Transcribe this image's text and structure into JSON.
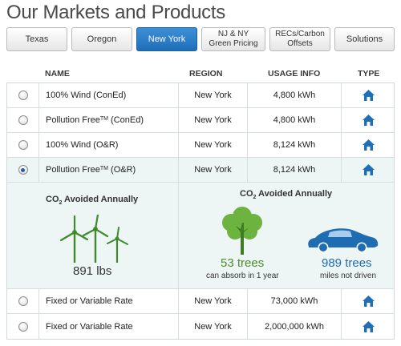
{
  "page_title": "Our Markets and Products",
  "tabs": [
    {
      "label": "Texas",
      "active": false
    },
    {
      "label": "Oregon",
      "active": false
    },
    {
      "label": "New York",
      "active": true
    },
    {
      "label": "NJ & NY Green Pricing",
      "active": false
    },
    {
      "label": "RECs/Carbon Offsets",
      "active": false
    },
    {
      "label": "Solutions",
      "active": false
    }
  ],
  "columns": {
    "name": "NAME",
    "region": "REGION",
    "usage": "USAGE INFO",
    "type": "TYPE"
  },
  "rows": [
    {
      "name": "100% Wind (ConEd)",
      "tm": "",
      "suffix": "",
      "region": "New York",
      "usage": "4,800 kWh",
      "selected": false,
      "type_icon": "house-icon"
    },
    {
      "name": "Pollution Free",
      "tm": "TM",
      "suffix": " (ConEd)",
      "region": "New York",
      "usage": "4,800 kWh",
      "selected": false,
      "type_icon": "house-icon"
    },
    {
      "name": "100% Wind (O&R)",
      "tm": "",
      "suffix": "",
      "region": "New York",
      "usage": "8,124 kWh",
      "selected": false,
      "type_icon": "house-icon"
    },
    {
      "name": "Pollution Free",
      "tm": "TM",
      "suffix": " (O&R)",
      "region": "New York",
      "usage": "8,124 kWh",
      "selected": true,
      "type_icon": "house-icon"
    },
    {
      "name": "Fixed or Variable Rate",
      "tm": "",
      "suffix": "",
      "region": "New York",
      "usage": "73,000 kWh",
      "selected": false,
      "type_icon": "house-icon"
    },
    {
      "name": "Fixed or Variable Rate",
      "tm": "",
      "suffix": "",
      "region": "New York",
      "usage": "2,000,000 kWh",
      "selected": false,
      "type_icon": "house-icon"
    }
  ],
  "detail": {
    "co2_prefix": "CO",
    "co2_sub": "2",
    "co2_suffix": " Avoided Annually",
    "lbs": "891 lbs",
    "trees": "53 trees",
    "trees_caption": "can absorb in 1 year",
    "miles": "989 trees",
    "miles_caption": "miles not driven"
  },
  "colors": {
    "accent": "#1f6fb8",
    "green": "#4a8f27",
    "blue": "#1e6db3"
  }
}
